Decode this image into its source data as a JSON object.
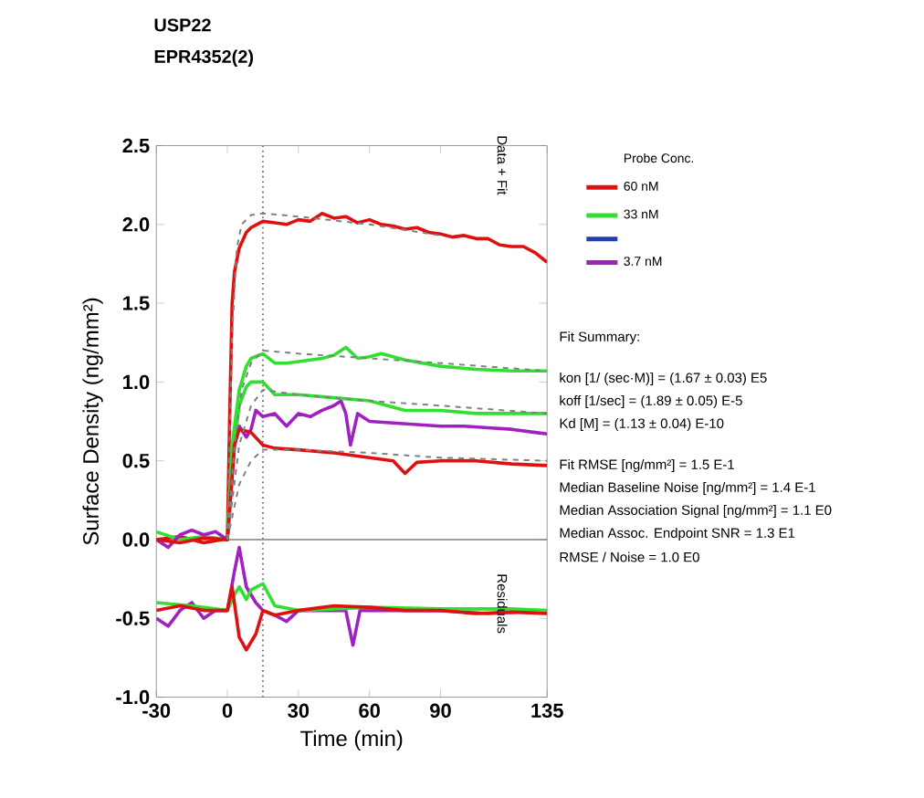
{
  "chart_data": {
    "type": "line",
    "title": "USP22",
    "subtitle": "EPR4352(2)",
    "xlabel": "Time (min)",
    "ylabel": "Surface Density (ng/mm²)",
    "legend_title": "Probe Conc.",
    "legend": "right",
    "grid": false,
    "xlim": [
      -30,
      135
    ],
    "xticks": [
      -30,
      0,
      30,
      60,
      90,
      135
    ],
    "ylim": [
      -1.0,
      2.5
    ],
    "yticks": [
      {
        "value": -1.0,
        "label": "-1.0"
      },
      {
        "value": -0.5,
        "label": "-0.5"
      },
      {
        "value": 0.0,
        "label": "0.0"
      },
      {
        "value": 0.5,
        "label": "0.5"
      },
      {
        "value": 1.0,
        "label": "1.0"
      },
      {
        "value": 1.5,
        "label": "1.5"
      },
      {
        "value": 2.0,
        "label": "2.0"
      },
      {
        "value": 2.5,
        "label": "2.5"
      }
    ],
    "ref_lines": [
      {
        "axis": "x",
        "value": 15,
        "color": "#505060",
        "line_style": "dotted"
      },
      {
        "axis": "y",
        "value": 0,
        "color": "#808080",
        "line_style": "solid"
      }
    ],
    "series": [
      {
        "name": "60 nM",
        "color": "#e01010",
        "x": [
          -30,
          -20,
          -10,
          -2,
          0,
          1,
          2,
          3,
          5,
          8,
          10,
          15,
          20,
          25,
          30,
          35,
          40,
          45,
          50,
          55,
          60,
          65,
          70,
          75,
          80,
          85,
          90,
          95,
          100,
          105,
          110,
          115,
          120,
          125,
          130,
          135
        ],
        "values": [
          0.0,
          0.02,
          -0.02,
          0.0,
          0.0,
          0.8,
          1.5,
          1.7,
          1.85,
          1.95,
          1.98,
          2.02,
          2.01,
          2.0,
          2.03,
          2.02,
          2.07,
          2.04,
          2.05,
          2.01,
          2.03,
          2.0,
          1.99,
          1.97,
          1.98,
          1.95,
          1.94,
          1.92,
          1.93,
          1.91,
          1.91,
          1.87,
          1.86,
          1.86,
          1.82,
          1.76
        ]
      },
      {
        "name": "33 nM",
        "color": "#30e030",
        "x": [
          -30,
          -20,
          -10,
          0,
          2,
          5,
          8,
          10,
          15,
          20,
          25,
          30,
          40,
          45,
          50,
          55,
          60,
          65,
          75,
          90,
          105,
          120,
          135
        ],
        "values": [
          0.05,
          0.0,
          0.02,
          0.0,
          0.6,
          0.95,
          1.1,
          1.15,
          1.18,
          1.12,
          1.12,
          1.13,
          1.15,
          1.17,
          1.22,
          1.15,
          1.16,
          1.18,
          1.14,
          1.1,
          1.08,
          1.07,
          1.07
        ]
      },
      {
        "color": "#2040b0"
      },
      {
        "name": "3.7 nM",
        "color": "#a020c0",
        "x": [
          -30,
          -25,
          -20,
          -15,
          -10,
          -5,
          0,
          2,
          3,
          5,
          8,
          10,
          12,
          15,
          20,
          25,
          30,
          35,
          40,
          45,
          48,
          50,
          52,
          55,
          60,
          70,
          80,
          90,
          100,
          110,
          120,
          130,
          135
        ],
        "values": [
          0.0,
          -0.05,
          0.03,
          0.06,
          0.03,
          0.05,
          0.0,
          0.4,
          0.6,
          0.72,
          0.65,
          0.7,
          0.82,
          0.78,
          0.8,
          0.72,
          0.8,
          0.78,
          0.82,
          0.85,
          0.88,
          0.8,
          0.6,
          0.8,
          0.75,
          0.74,
          0.73,
          0.72,
          0.72,
          0.71,
          0.7,
          0.68,
          0.67
        ]
      },
      {
        "color": "#30e030",
        "x": [
          0,
          2,
          5,
          8,
          10,
          15,
          20,
          30,
          45,
          60,
          75,
          90,
          105,
          120,
          135
        ],
        "values": [
          0.0,
          0.5,
          0.85,
          0.97,
          1.0,
          1.0,
          0.92,
          0.92,
          0.9,
          0.88,
          0.82,
          0.82,
          0.8,
          0.8,
          0.8
        ]
      },
      {
        "color": "#e01010",
        "x": [
          -30,
          -20,
          -10,
          0,
          2,
          3,
          5,
          10,
          15,
          20,
          30,
          45,
          60,
          70,
          75,
          80,
          90,
          105,
          120,
          135
        ],
        "values": [
          0.0,
          -0.02,
          0.01,
          0.0,
          0.4,
          0.6,
          0.7,
          0.68,
          0.6,
          0.58,
          0.57,
          0.55,
          0.52,
          0.5,
          0.42,
          0.49,
          0.5,
          0.5,
          0.48,
          0.47
        ]
      },
      {
        "color": "#808080",
        "line_style": "dashed",
        "x": [
          0,
          2,
          4,
          6,
          10,
          15,
          30,
          60,
          90
        ],
        "values": [
          0.0,
          1.3,
          1.85,
          2.0,
          2.06,
          2.07,
          2.05,
          2.0,
          1.93
        ]
      },
      {
        "color": "#808080",
        "line_style": "dashed",
        "x": [
          0,
          3,
          6,
          10,
          15,
          30,
          60,
          90,
          135
        ],
        "values": [
          0.0,
          0.6,
          0.95,
          1.12,
          1.2,
          1.18,
          1.15,
          1.12,
          1.07
        ]
      },
      {
        "color": "#808080",
        "line_style": "dashed",
        "x": [
          0,
          5,
          10,
          15,
          30,
          60,
          90,
          135
        ],
        "values": [
          0.0,
          0.6,
          0.85,
          0.95,
          0.92,
          0.88,
          0.85,
          0.8
        ]
      },
      {
        "color": "#808080",
        "line_style": "dashed",
        "x": [
          0,
          5,
          10,
          15,
          30,
          60,
          90,
          135
        ],
        "values": [
          0.0,
          0.35,
          0.5,
          0.57,
          0.57,
          0.55,
          0.52,
          0.5
        ]
      },
      {
        "color": "#a020c0",
        "x": [
          -30,
          -25,
          -20,
          -15,
          -10,
          -5,
          0,
          3,
          5,
          8,
          12,
          15,
          20,
          25,
          30,
          40,
          50,
          53,
          56,
          70,
          90,
          110,
          135
        ],
        "values": [
          -0.5,
          -0.55,
          -0.45,
          -0.4,
          -0.5,
          -0.45,
          -0.45,
          -0.2,
          -0.05,
          -0.3,
          -0.4,
          -0.45,
          -0.48,
          -0.52,
          -0.45,
          -0.45,
          -0.45,
          -0.67,
          -0.45,
          -0.45,
          -0.45,
          -0.47,
          -0.45
        ]
      },
      {
        "color": "#30e030",
        "x": [
          -30,
          -15,
          0,
          3,
          5,
          8,
          10,
          15,
          20,
          30,
          60,
          90,
          120,
          135
        ],
        "values": [
          -0.4,
          -0.42,
          -0.45,
          -0.35,
          -0.3,
          -0.38,
          -0.32,
          -0.28,
          -0.42,
          -0.45,
          -0.43,
          -0.44,
          -0.44,
          -0.45
        ]
      },
      {
        "color": "#e01010",
        "x": [
          -30,
          -20,
          -10,
          0,
          2,
          5,
          8,
          12,
          15,
          20,
          30,
          45,
          60,
          75,
          90,
          105,
          120,
          135
        ],
        "values": [
          -0.45,
          -0.42,
          -0.45,
          -0.45,
          -0.3,
          -0.62,
          -0.7,
          -0.6,
          -0.45,
          -0.48,
          -0.45,
          -0.42,
          -0.43,
          -0.45,
          -0.45,
          -0.47,
          -0.46,
          -0.47
        ]
      }
    ],
    "annotations": [
      "Data + Fit",
      "Residuals",
      "Fit Summary:",
      "kon  [1/ (sec·M)]  =  (1.67 ± 0.03) E5",
      "koff  [1/sec]  =  (1.89 ± 0.05) E-5",
      "Kd  [M]  =  (1.13 ± 0.04) E-10",
      "Fit RMSE [ng/mm²]  =  1.5 E-1",
      "Median Baseline Noise [ng/mm²]  =  1.4 E-1",
      "Median Association Signal [ng/mm²]  =  1.1 E0",
      "Median Assoc. Endpoint SNR  =  1.3 E1",
      "RMSE / Noise  =  1.0 E0"
    ]
  }
}
